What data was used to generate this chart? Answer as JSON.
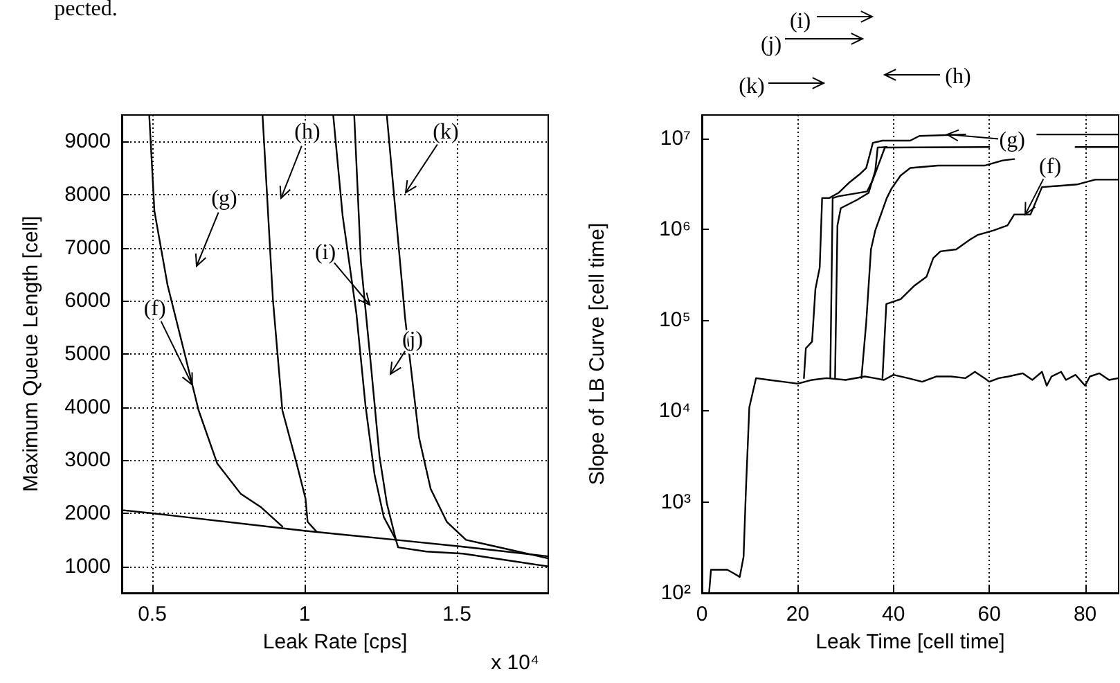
{
  "chart_data": [
    {
      "type": "line",
      "xlabel": "Leak Rate [cps]",
      "ylabel": "Maximum Queue Length [cell]",
      "xlim": [
        0.4,
        1.8
      ],
      "ylim": [
        500,
        9500
      ],
      "xticks": [
        0.5,
        1,
        1.5
      ],
      "yticks": [
        1000,
        2000,
        3000,
        4000,
        5000,
        6000,
        7000,
        8000,
        9000
      ],
      "grid": true,
      "marker": "none",
      "line_style": "solid",
      "series": [
        {
          "color": "#000000",
          "x": [
            0.4,
            0.5,
            1.0,
            1.3,
            1.52,
            1.8
          ],
          "values": [
            2060,
            2000,
            1670,
            1500,
            1370,
            1190
          ]
        },
        {
          "color": "#000000",
          "x": [
            0.49,
            0.507,
            0.55,
            0.607,
            0.652,
            0.713,
            0.79,
            0.858,
            0.927
          ],
          "values": [
            9500,
            7690,
            6300,
            4990,
            3940,
            2940,
            2370,
            2110,
            1750
          ]
        },
        {
          "color": "#000000",
          "x": [
            0.862,
            0.896,
            0.927,
            0.972,
            1.003,
            1.01,
            1.04
          ],
          "values": [
            9500,
            6030,
            3940,
            2980,
            2280,
            1840,
            1650
          ]
        },
        {
          "color": "#000000",
          "x": [
            1.094,
            1.125,
            1.17,
            1.2,
            1.23,
            1.26,
            1.3
          ],
          "values": [
            9500,
            7600,
            5770,
            4030,
            2720,
            1930,
            1500
          ]
        },
        {
          "color": "#000000",
          "x": [
            1.163,
            1.185,
            1.216,
            1.246,
            1.27,
            1.3,
            1.307,
            1.4,
            1.52,
            1.8
          ],
          "values": [
            9500,
            6730,
            4900,
            3070,
            2190,
            1500,
            1360,
            1280,
            1240,
            1000
          ]
        },
        {
          "color": "#000000",
          "x": [
            1.27,
            1.33,
            1.376,
            1.414,
            1.467,
            1.53,
            1.6,
            1.8
          ],
          "values": [
            9500,
            5680,
            3420,
            2460,
            1840,
            1500,
            1410,
            1150
          ]
        }
      ],
      "annotations": [
        "x 10⁴",
        "pected.",
        "(h)",
        "(g)",
        {
          "text": "(f)",
          "x": 0.631,
          "y": 4420
        },
        "(i)",
        "(j)",
        "(k)"
      ]
    },
    {
      "type": "line",
      "xlabel": "Leak Time [cell time]",
      "ylabel": "Slope of LB Curve [cell time]",
      "xlim": [
        0,
        87
      ],
      "ylim": [
        100,
        18000000
      ],
      "xticks": [
        0,
        20,
        40,
        60,
        80
      ],
      "yticks": [
        {
          "value": 100,
          "label": "10²"
        },
        {
          "value": 1000,
          "label": "10³"
        },
        {
          "value": 10000,
          "label": "10⁴"
        },
        {
          "value": 100000,
          "label": "10⁵"
        },
        {
          "value": 1000000,
          "label": "10⁶"
        },
        {
          "value": 10000000,
          "label": "10⁷"
        }
      ],
      "log": "y",
      "grid": "x",
      "marker": "none",
      "line_style": "solid",
      "series": [
        {
          "color": "#000000",
          "x": [
            21.3,
            21.7,
            23,
            23.7,
            24.6,
            25.1,
            26.6,
            28.5,
            30.9,
            32.9,
            34.3,
            35.7,
            37.7,
            43.5,
            45.4,
            55,
            62,
            70,
            87
          ],
          "values": [
            23000,
            49000,
            58000,
            220000,
            380000,
            2200000,
            2200000,
            2500000,
            3300000,
            4000000,
            4700000,
            8900000,
            9400000,
            9400000,
            10600000,
            11000000,
            null,
            11000000,
            11000000
          ]
        },
        {
          "color": "#000000",
          "x": [
            26.8,
            27.3,
            28.5,
            34.5,
            35.7,
            38.2,
            60,
            66,
            78,
            87
          ],
          "values": [
            23000,
            2200000,
            2300000,
            2600000,
            3500000,
            7900000,
            8000000,
            null,
            8000000,
            8000000
          ]
        },
        {
          "color": "#000000",
          "x": [
            27.8,
            28.3,
            29,
            32.4,
            34.8,
            36.2,
            36.7,
            38.6
          ],
          "values": [
            23000,
            1100000,
            1700000,
            2100000,
            2500000,
            4400000,
            7900000,
            8000000
          ]
        },
        {
          "color": "#000000",
          "x": [
            33.3,
            34.3,
            35.3,
            36.2,
            38.6,
            39.6,
            41.5,
            43.5,
            49.3,
            59,
            62.8,
            65.2
          ],
          "values": [
            23000,
            93000,
            600000,
            970000,
            2200000,
            2800000,
            3900000,
            4700000,
            5000000,
            5000000,
            5700000,
            5900000
          ]
        },
        {
          "color": "#000000",
          "x": [
            37.7,
            38.5,
            41.5,
            44.4,
            46.9,
            48.3,
            49.8,
            53.1,
            56,
            57.5,
            60.9,
            63.8,
            65.2,
            68.6,
            71,
            78.3,
            82.1,
            87
          ],
          "values": [
            23000,
            150000,
            170000,
            240000,
            300000,
            480000,
            570000,
            600000,
            770000,
            860000,
            970000,
            1100000,
            1450000,
            1450000,
            2900000,
            3100000,
            3500000,
            3500000
          ]
        },
        {
          "color": "#000000",
          "x": [
            1.5,
            1.9,
            5.3,
            6.6,
            7.9,
            8.7,
            9.2,
            9.9,
            11.3,
            14,
            17,
            20,
            23,
            26,
            30,
            34,
            36,
            38,
            40,
            43,
            46,
            49,
            52,
            55,
            57,
            59,
            60,
            62,
            64,
            67,
            69,
            71,
            72,
            73,
            75,
            76,
            78,
            80,
            81,
            83,
            85,
            87
          ],
          "values": [
            100,
            180,
            180,
            165,
            150,
            250,
            1400,
            11000,
            23000,
            22000,
            21000,
            20000,
            22000,
            23000,
            22000,
            24000,
            23000,
            22000,
            25000,
            23000,
            21000,
            24000,
            24000,
            23000,
            27000,
            23000,
            21000,
            23000,
            24000,
            26000,
            22000,
            27000,
            19000,
            24000,
            27000,
            22000,
            25000,
            19000,
            24000,
            26000,
            22000,
            23000
          ]
        }
      ],
      "annotations": [
        "(i)",
        "(j)",
        "(k)",
        "(h)",
        {
          "text": "(g)",
          "x": 51.2,
          "y": 11000000
        },
        {
          "text": "(f)",
          "x": 67.5,
          "y": 1450000
        }
      ]
    }
  ]
}
